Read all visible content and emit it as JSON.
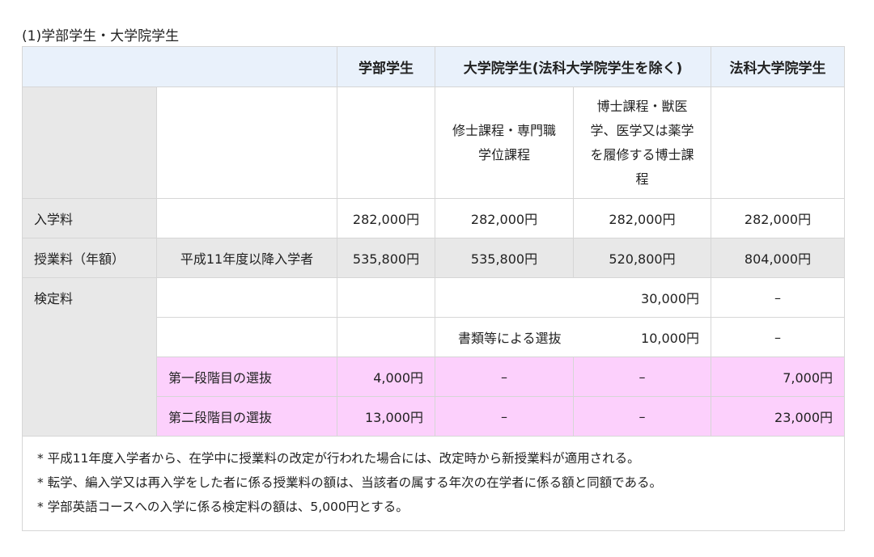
{
  "title": "(1)学部学生・大学院学生",
  "headers": {
    "undergrad": "学部学生",
    "grad": "大学院学生(法科大学院学生を除く)",
    "law": "法科大学院学生"
  },
  "subheaders": {
    "masters": "修士課程・専門職学位課程",
    "doctoral": "博士課程・獣医学、医学又は薬学を履修する博士課程"
  },
  "rows": {
    "admission": {
      "label": "入学料",
      "undergrad": "282,000円",
      "masters": "282,000円",
      "doctoral": "282,000円",
      "law": "282,000円"
    },
    "tuition": {
      "label": "授業料（年額）",
      "sub": "平成11年度以降入学者",
      "undergrad": "535,800円",
      "masters": "535,800円",
      "doctoral": "520,800円",
      "law": "804,000円"
    },
    "exam": {
      "label": "検定料",
      "general": {
        "grad": "30,000円",
        "law": "–"
      },
      "documents": {
        "label": "書類等による選抜",
        "grad": "10,000円",
        "law": "–"
      },
      "stage1": {
        "label": "第一段階目の選抜",
        "undergrad": "4,000円",
        "masters": "–",
        "doctoral": "–",
        "law": "7,000円"
      },
      "stage2": {
        "label": "第二段階目の選抜",
        "undergrad": "13,000円",
        "masters": "–",
        "doctoral": "–",
        "law": "23,000円"
      }
    }
  },
  "notes": [
    "* 平成11年度入学者から、在学中に授業料の改定が行われた場合には、改定時から新授業料が適用される。",
    "* 転学、編入学又は再入学をした者に係る授業料の額は、当該者の属する年次の在学者に係る額と同額である。",
    "* 学部英語コースへの入学に係る検定料の額は、5,000円とする。"
  ],
  "colors": {
    "header_bg": "#e9f1fb",
    "label_bg": "#e8e8e8",
    "highlight_bg": "#fcd0fc"
  }
}
